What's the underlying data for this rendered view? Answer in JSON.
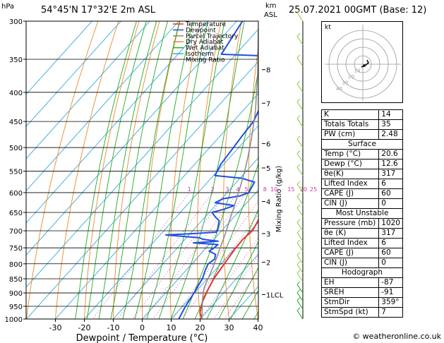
{
  "header": {
    "location": "54°45'N 17°32'E 2m ASL",
    "datetime": "25.07.2021 00GMT (Base: 12)",
    "unit_left": "hPa",
    "unit_right_km": "km",
    "unit_right_asl": "ASL"
  },
  "legend": [
    {
      "label": "Temperature",
      "color": "#e8322a"
    },
    {
      "label": "Dewpoint",
      "color": "#1f4fe0"
    },
    {
      "label": "Parcel Trajectory",
      "color": "#888888"
    },
    {
      "label": "Dry Adiabat",
      "color": "#e88b2a"
    },
    {
      "label": "Wet Adiabat",
      "color": "#22aa22"
    },
    {
      "label": "Isotherm",
      "color": "#33aadd"
    },
    {
      "label": "Mixing Ratio",
      "color": "#cc33aa"
    }
  ],
  "chart_data": {
    "type": "line",
    "title": "54°45'N 17°32'E 2m ASL",
    "xlabel": "Dewpoint / Temperature (°C)",
    "ylabel": "hPa",
    "ylabel_right": "Mixing Ratio (g/kg)",
    "x_ticks": [
      -30,
      -20,
      -10,
      0,
      10,
      20,
      30,
      40
    ],
    "y_ticks": [
      300,
      350,
      400,
      450,
      500,
      550,
      600,
      650,
      700,
      750,
      800,
      850,
      900,
      950,
      1000
    ],
    "ylim": [
      1000,
      300
    ],
    "xlim": [
      -35,
      40
    ],
    "km_labels": [
      {
        "p": 365,
        "label": "8"
      },
      {
        "p": 418,
        "label": "7"
      },
      {
        "p": 492,
        "label": "6"
      },
      {
        "p": 543,
        "label": "5"
      },
      {
        "p": 622,
        "label": "4"
      },
      {
        "p": 708,
        "label": "3"
      },
      {
        "p": 795,
        "label": "2"
      },
      {
        "p": 906,
        "label": "1LCL"
      }
    ],
    "mixing_ratio_labels": [
      "1",
      "2",
      "3",
      "4",
      "5",
      "8",
      "10",
      "15",
      "20",
      "25"
    ],
    "series": [
      {
        "name": "Temperature",
        "color": "#e8322a",
        "points": [
          [
            20.6,
            1000
          ],
          [
            18,
            975
          ],
          [
            16.5,
            950
          ],
          [
            15,
            925
          ],
          [
            14,
            900
          ],
          [
            12.2,
            850
          ],
          [
            11.2,
            800
          ],
          [
            10.2,
            750
          ],
          [
            10,
            725
          ],
          [
            10.6,
            700
          ],
          [
            9.6,
            675
          ],
          [
            8.3,
            650
          ],
          [
            6.2,
            620
          ],
          [
            5.0,
            600
          ],
          [
            2.4,
            565
          ],
          [
            0.6,
            550
          ],
          [
            -1.0,
            530
          ],
          [
            -3.0,
            500
          ],
          [
            -6.5,
            470
          ],
          [
            -10.5,
            445
          ],
          [
            -15.2,
            420
          ],
          [
            -19.0,
            400
          ],
          [
            -23.8,
            375
          ],
          [
            -28.0,
            355
          ],
          [
            -31.0,
            336
          ],
          [
            -36.5,
            300
          ]
        ]
      },
      {
        "name": "Dewpoint",
        "color": "#1f4fe0",
        "points": [
          [
            12.6,
            1000
          ],
          [
            11.8,
            975
          ],
          [
            11.0,
            950
          ],
          [
            10.4,
            925
          ],
          [
            9.8,
            900
          ],
          [
            9.0,
            875
          ],
          [
            8.3,
            850
          ],
          [
            6.8,
            825
          ],
          [
            5.6,
            800
          ],
          [
            6.4,
            785
          ],
          [
            5.2,
            770
          ],
          [
            2.0,
            760
          ],
          [
            2.6,
            752
          ],
          [
            3.0,
            740
          ],
          [
            -6.0,
            735
          ],
          [
            2.0,
            730
          ],
          [
            -3.5,
            725
          ],
          [
            -5.5,
            720
          ],
          [
            -18.0,
            712
          ],
          [
            -9.0,
            708
          ],
          [
            -1.5,
            704
          ],
          [
            -2.0,
            694
          ],
          [
            -4.0,
            672
          ],
          [
            -6.5,
            662
          ],
          [
            -9.0,
            650
          ],
          [
            -6.0,
            642
          ],
          [
            -3.5,
            632
          ],
          [
            -11.0,
            625
          ],
          [
            -9.5,
            615
          ],
          [
            -4.5,
            608
          ],
          [
            -2.5,
            600
          ],
          [
            -3.0,
            590
          ],
          [
            -3.8,
            575
          ],
          [
            -9.5,
            566
          ],
          [
            -19.5,
            560
          ],
          [
            -21.0,
            535
          ],
          [
            -21.8,
            500
          ],
          [
            -22.5,
            475
          ],
          [
            -23.0,
            450
          ],
          [
            -24.5,
            432
          ],
          [
            -26.5,
            415
          ],
          [
            -30.0,
            400
          ],
          [
            -32.0,
            375
          ],
          [
            -34.0,
            350
          ],
          [
            -41.0,
            345
          ],
          [
            -55.0,
            343
          ],
          [
            -58.0,
            300
          ]
        ]
      },
      {
        "name": "Parcel Trajectory",
        "color": "#888888",
        "points": [
          [
            20.6,
            1000
          ],
          [
            17.6,
            960
          ],
          [
            15.2,
            930
          ],
          [
            13.0,
            900
          ],
          [
            11.6,
            880
          ],
          [
            10.2,
            850
          ],
          [
            8.8,
            820
          ],
          [
            7.2,
            790
          ],
          [
            5.4,
            760
          ],
          [
            3.6,
            730
          ],
          [
            1.6,
            700
          ],
          [
            -0.6,
            670
          ],
          [
            -2.8,
            640
          ],
          [
            -5.2,
            610
          ],
          [
            -7.8,
            580
          ],
          [
            -10.6,
            550
          ],
          [
            -13.8,
            520
          ],
          [
            -17.4,
            490
          ],
          [
            -21.4,
            460
          ],
          [
            -25.8,
            430
          ],
          [
            -31.0,
            400
          ],
          [
            -36.6,
            370
          ],
          [
            -43.0,
            340
          ],
          [
            -50.0,
            310
          ],
          [
            -52.4,
            300
          ]
        ]
      }
    ]
  },
  "hodograph": {
    "label": "kt",
    "ring_labels": [
      "10",
      "20",
      "30",
      "40"
    ]
  },
  "indices": {
    "basic": [
      {
        "label": "K",
        "value": "14"
      },
      {
        "label": "Totals Totals",
        "value": "35"
      },
      {
        "label": "PW (cm)",
        "value": "2.48"
      }
    ],
    "surface_title": "Surface",
    "surface": [
      {
        "label": "Temp (°C)",
        "value": "20.6"
      },
      {
        "label": "Dewp (°C)",
        "value": "12.6"
      },
      {
        "label": "θe(K)",
        "value": "317"
      },
      {
        "label": "Lifted Index",
        "value": "6"
      },
      {
        "label": "CAPE (J)",
        "value": "60"
      },
      {
        "label": "CIN (J)",
        "value": "0"
      }
    ],
    "mu_title": "Most Unstable",
    "mu": [
      {
        "label": "Pressure (mb)",
        "value": "1020"
      },
      {
        "label": "θe (K)",
        "value": "317"
      },
      {
        "label": "Lifted Index",
        "value": "6"
      },
      {
        "label": "CAPE (J)",
        "value": "60"
      },
      {
        "label": "CIN (J)",
        "value": "0"
      }
    ],
    "hodo_title": "Hodograph",
    "hodo": [
      {
        "label": "EH",
        "value": "-87"
      },
      {
        "label": "SREH",
        "value": "-91"
      },
      {
        "label": "StmDir",
        "value": "359°"
      },
      {
        "label": "StmSpd (kt)",
        "value": "7"
      }
    ]
  },
  "credit": "© weatheronline.co.uk"
}
